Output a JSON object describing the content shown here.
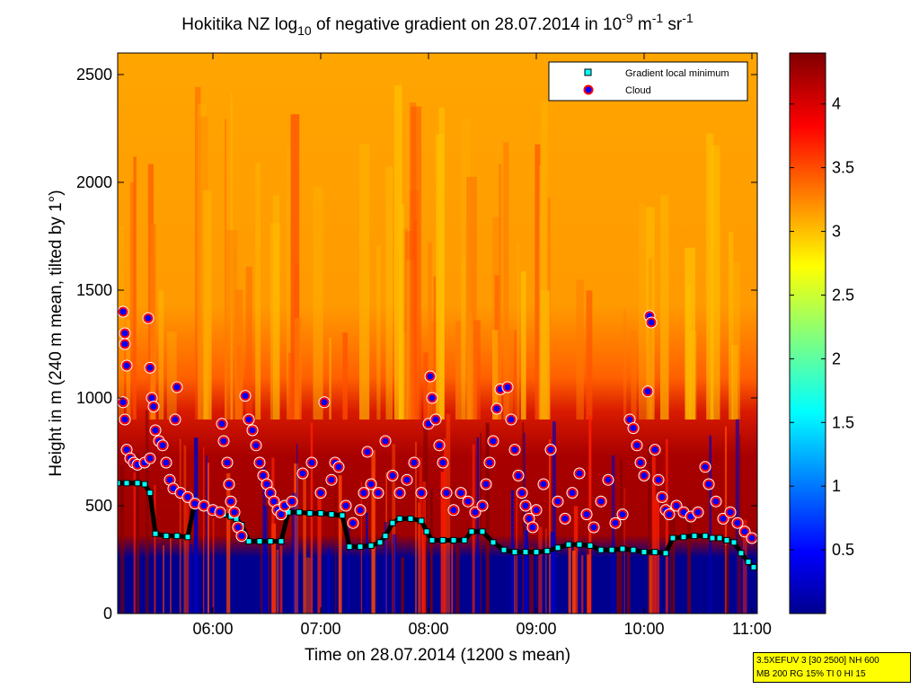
{
  "chart_data": {
    "type": "heatmap",
    "title": {
      "prefix": "Hokitika NZ log",
      "sub": "10",
      "middle": " of negative gradient on 28.07.2014 in 10",
      "sup1": "-9",
      "m": " m",
      "sup2": "-1",
      "sr": " sr",
      "sup3": "-1"
    },
    "xlabel": "Time on 28.07.2014 (1200 s mean)",
    "ylabel": "Height in m (240 m mean, tilted by 1°)",
    "xlim": [
      "05:07",
      "11:03"
    ],
    "ylim": [
      0,
      2600
    ],
    "x_ticks": [
      "06:00",
      "07:00",
      "08:00",
      "09:00",
      "10:00",
      "11:00"
    ],
    "y_ticks": [
      "0",
      "500",
      "1000",
      "1500",
      "2000",
      "2500"
    ],
    "colorbar": {
      "colormap": "jet",
      "range": [
        0,
        4.4
      ],
      "ticks": [
        "0.5",
        "1",
        "1.5",
        "2",
        "2.5",
        "3",
        "3.5",
        "4"
      ]
    },
    "legend": {
      "position": "top-right",
      "items": [
        {
          "label": "Gradient local minimum",
          "marker": "square",
          "color": "#00ffff"
        },
        {
          "label": "Cloud",
          "marker": "circle",
          "color": "#ff0000"
        }
      ]
    },
    "series": [
      {
        "name": "Gradient local minimum",
        "points": [
          [
            "05:07",
            605
          ],
          [
            "05:12",
            605
          ],
          [
            "05:18",
            605
          ],
          [
            "05:22",
            600
          ],
          [
            "05:25",
            560
          ],
          [
            "05:28",
            370
          ],
          [
            "05:34",
            360
          ],
          [
            "05:40",
            360
          ],
          [
            "05:46",
            355
          ],
          [
            "05:50",
            520
          ],
          [
            "05:54",
            510
          ],
          [
            "05:58",
            490
          ],
          [
            "06:02",
            475
          ],
          [
            "06:06",
            460
          ],
          [
            "06:10",
            450
          ],
          [
            "06:13",
            440
          ],
          [
            "06:16",
            410
          ],
          [
            "06:20",
            335
          ],
          [
            "06:26",
            335
          ],
          [
            "06:32",
            335
          ],
          [
            "06:38",
            335
          ],
          [
            "06:42",
            470
          ],
          [
            "06:48",
            470
          ],
          [
            "06:54",
            465
          ],
          [
            "07:00",
            465
          ],
          [
            "07:06",
            460
          ],
          [
            "07:12",
            455
          ],
          [
            "07:16",
            310
          ],
          [
            "07:22",
            310
          ],
          [
            "07:28",
            315
          ],
          [
            "07:33",
            330
          ],
          [
            "07:36",
            360
          ],
          [
            "07:40",
            420
          ],
          [
            "07:44",
            440
          ],
          [
            "07:50",
            440
          ],
          [
            "07:56",
            430
          ],
          [
            "07:59",
            380
          ],
          [
            "08:02",
            340
          ],
          [
            "08:08",
            340
          ],
          [
            "08:14",
            340
          ],
          [
            "08:20",
            340
          ],
          [
            "08:24",
            380
          ],
          [
            "08:30",
            380
          ],
          [
            "08:36",
            330
          ],
          [
            "08:42",
            295
          ],
          [
            "08:48",
            285
          ],
          [
            "08:54",
            285
          ],
          [
            "09:00",
            285
          ],
          [
            "09:06",
            290
          ],
          [
            "09:12",
            305
          ],
          [
            "09:18",
            320
          ],
          [
            "09:24",
            320
          ],
          [
            "09:30",
            315
          ],
          [
            "09:36",
            295
          ],
          [
            "09:42",
            295
          ],
          [
            "09:48",
            300
          ],
          [
            "09:54",
            295
          ],
          [
            "10:00",
            285
          ],
          [
            "10:06",
            285
          ],
          [
            "10:12",
            280
          ],
          [
            "10:16",
            350
          ],
          [
            "10:22",
            355
          ],
          [
            "10:28",
            360
          ],
          [
            "10:34",
            360
          ],
          [
            "10:38",
            350
          ],
          [
            "10:42",
            350
          ],
          [
            "10:46",
            340
          ],
          [
            "10:50",
            330
          ],
          [
            "10:54",
            280
          ],
          [
            "10:58",
            240
          ],
          [
            "11:01",
            215
          ]
        ]
      },
      {
        "name": "Cloud",
        "points": [
          [
            "05:10",
            1400
          ],
          [
            "05:11",
            1300
          ],
          [
            "05:11",
            1250
          ],
          [
            "05:12",
            1150
          ],
          [
            "05:10",
            980
          ],
          [
            "05:11",
            900
          ],
          [
            "05:12",
            760
          ],
          [
            "05:14",
            720
          ],
          [
            "05:16",
            700
          ],
          [
            "05:18",
            690
          ],
          [
            "05:22",
            700
          ],
          [
            "05:25",
            720
          ],
          [
            "05:24",
            1370
          ],
          [
            "05:25",
            1140
          ],
          [
            "05:26",
            1000
          ],
          [
            "05:27",
            960
          ],
          [
            "05:28",
            850
          ],
          [
            "05:30",
            800
          ],
          [
            "05:32",
            780
          ],
          [
            "05:34",
            700
          ],
          [
            "05:36",
            620
          ],
          [
            "05:38",
            580
          ],
          [
            "05:40",
            1050
          ],
          [
            "05:39",
            900
          ],
          [
            "05:42",
            560
          ],
          [
            "05:46",
            540
          ],
          [
            "05:50",
            510
          ],
          [
            "05:55",
            500
          ],
          [
            "06:00",
            480
          ],
          [
            "06:04",
            470
          ],
          [
            "06:05",
            880
          ],
          [
            "06:06",
            800
          ],
          [
            "06:08",
            700
          ],
          [
            "06:09",
            600
          ],
          [
            "06:10",
            520
          ],
          [
            "06:12",
            470
          ],
          [
            "06:14",
            400
          ],
          [
            "06:16",
            360
          ],
          [
            "06:18",
            1010
          ],
          [
            "06:20",
            900
          ],
          [
            "06:22",
            850
          ],
          [
            "06:24",
            780
          ],
          [
            "06:26",
            700
          ],
          [
            "06:28",
            640
          ],
          [
            "06:30",
            600
          ],
          [
            "06:32",
            560
          ],
          [
            "06:34",
            520
          ],
          [
            "06:36",
            480
          ],
          [
            "06:38",
            460
          ],
          [
            "06:40",
            500
          ],
          [
            "06:44",
            520
          ],
          [
            "06:50",
            650
          ],
          [
            "06:55",
            700
          ],
          [
            "07:02",
            980
          ],
          [
            "07:00",
            560
          ],
          [
            "07:06",
            620
          ],
          [
            "07:08",
            700
          ],
          [
            "07:10",
            680
          ],
          [
            "07:14",
            500
          ],
          [
            "07:18",
            420
          ],
          [
            "07:22",
            480
          ],
          [
            "07:24",
            560
          ],
          [
            "07:26",
            750
          ],
          [
            "07:28",
            600
          ],
          [
            "07:32",
            560
          ],
          [
            "07:36",
            800
          ],
          [
            "07:40",
            640
          ],
          [
            "07:44",
            560
          ],
          [
            "07:48",
            620
          ],
          [
            "07:52",
            700
          ],
          [
            "07:56",
            560
          ],
          [
            "08:00",
            880
          ],
          [
            "08:01",
            1100
          ],
          [
            "08:02",
            1000
          ],
          [
            "08:04",
            900
          ],
          [
            "08:06",
            780
          ],
          [
            "08:08",
            700
          ],
          [
            "08:10",
            560
          ],
          [
            "08:14",
            480
          ],
          [
            "08:18",
            560
          ],
          [
            "08:22",
            520
          ],
          [
            "08:26",
            470
          ],
          [
            "08:30",
            500
          ],
          [
            "08:32",
            600
          ],
          [
            "08:34",
            700
          ],
          [
            "08:36",
            800
          ],
          [
            "08:38",
            950
          ],
          [
            "08:40",
            1040
          ],
          [
            "08:44",
            1050
          ],
          [
            "08:46",
            900
          ],
          [
            "08:48",
            760
          ],
          [
            "08:50",
            640
          ],
          [
            "08:52",
            560
          ],
          [
            "08:54",
            500
          ],
          [
            "08:56",
            440
          ],
          [
            "08:58",
            400
          ],
          [
            "09:00",
            480
          ],
          [
            "09:04",
            600
          ],
          [
            "09:08",
            760
          ],
          [
            "09:12",
            520
          ],
          [
            "09:16",
            440
          ],
          [
            "09:20",
            560
          ],
          [
            "09:24",
            650
          ],
          [
            "09:28",
            460
          ],
          [
            "09:32",
            400
          ],
          [
            "09:36",
            520
          ],
          [
            "09:40",
            620
          ],
          [
            "09:44",
            420
          ],
          [
            "09:48",
            460
          ],
          [
            "09:52",
            900
          ],
          [
            "09:54",
            860
          ],
          [
            "09:56",
            780
          ],
          [
            "09:58",
            700
          ],
          [
            "10:00",
            640
          ],
          [
            "10:02",
            1030
          ],
          [
            "10:03",
            1380
          ],
          [
            "10:04",
            1350
          ],
          [
            "10:06",
            760
          ],
          [
            "10:08",
            620
          ],
          [
            "10:10",
            540
          ],
          [
            "10:12",
            480
          ],
          [
            "10:14",
            460
          ],
          [
            "10:18",
            500
          ],
          [
            "10:22",
            470
          ],
          [
            "10:26",
            450
          ],
          [
            "10:30",
            470
          ],
          [
            "10:34",
            680
          ],
          [
            "10:36",
            600
          ],
          [
            "10:40",
            520
          ],
          [
            "10:44",
            440
          ],
          [
            "10:48",
            470
          ],
          [
            "10:52",
            420
          ],
          [
            "10:56",
            380
          ],
          [
            "11:00",
            350
          ]
        ]
      }
    ]
  },
  "info_box": {
    "line1": "3.5XEFUV 3 [30 2500] NH 600",
    "line2": "MB 200 RG 15% TI 0 HI 15"
  }
}
